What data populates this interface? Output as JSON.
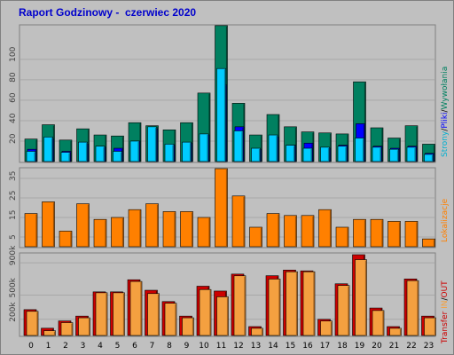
{
  "title": "Raport Godzinowy -  czerwiec 2020",
  "colors": {
    "background": "#c0c0c0",
    "panel": "#c0c0c0",
    "strony": "#00ccff",
    "pliki": "#0000ff",
    "wywolania": "#008060",
    "lokalizacje": "#ff8000",
    "transfer_in": "#f4a040",
    "transfer_out": "#cc0000"
  },
  "legend": {
    "panel1": {
      "strony": "Strony",
      "pliki": "Pliki",
      "wywolania": "Wywołania",
      "sep": "/"
    },
    "panel2": {
      "lokalizacje": "Lokalizacje"
    },
    "panel3": {
      "transfer": "Transfer",
      "in": "IN",
      "out": "OUT",
      "sep": "/"
    }
  },
  "chart_data": [
    {
      "type": "bar",
      "title": "Raport Godzinowy -  czerwiec 2020",
      "categories": [
        "0",
        "1",
        "2",
        "3",
        "4",
        "5",
        "6",
        "7",
        "8",
        "9",
        "10",
        "11",
        "12",
        "13",
        "14",
        "15",
        "16",
        "17",
        "18",
        "19",
        "20",
        "21",
        "22",
        "23"
      ],
      "yticks": [
        "20",
        "40",
        "60",
        "80",
        "100"
      ],
      "ylim": [
        0,
        132
      ],
      "series": [
        {
          "name": "Wywołania",
          "values": [
            22,
            36,
            21,
            32,
            26,
            25,
            38,
            35,
            31,
            38,
            67,
            133,
            57,
            26,
            46,
            34,
            29,
            28,
            27,
            78,
            33,
            23,
            35,
            17
          ]
        },
        {
          "name": "Pliki",
          "values": [
            12,
            22,
            10,
            17,
            14,
            13,
            20,
            32,
            16,
            18,
            26,
            75,
            34,
            12,
            24,
            16,
            18,
            13,
            16,
            37,
            15,
            13,
            15,
            8
          ]
        },
        {
          "name": "Strony",
          "values": [
            10,
            24,
            9,
            19,
            15,
            10,
            20,
            34,
            17,
            19,
            27,
            91,
            30,
            13,
            26,
            16,
            13,
            14,
            15,
            23,
            14,
            12,
            14,
            7
          ]
        }
      ]
    },
    {
      "type": "bar",
      "categories": [
        "0",
        "1",
        "2",
        "3",
        "4",
        "5",
        "6",
        "7",
        "8",
        "9",
        "10",
        "11",
        "12",
        "13",
        "14",
        "15",
        "16",
        "17",
        "18",
        "19",
        "20",
        "21",
        "22",
        "23"
      ],
      "yticks": [
        "5",
        "15",
        "25",
        "35"
      ],
      "ylim": [
        0,
        40
      ],
      "series": [
        {
          "name": "Lokalizacje",
          "values": [
            17,
            23,
            8,
            22,
            14,
            15,
            19,
            22,
            18,
            18,
            15,
            40,
            26,
            10,
            17,
            16,
            16,
            19,
            10,
            14,
            14,
            13,
            13,
            4
          ]
        }
      ]
    },
    {
      "type": "bar",
      "categories": [
        "0",
        "1",
        "2",
        "3",
        "4",
        "5",
        "6",
        "7",
        "8",
        "9",
        "10",
        "11",
        "12",
        "13",
        "14",
        "15",
        "16",
        "17",
        "18",
        "19",
        "20",
        "21",
        "22",
        "23"
      ],
      "yticks": [
        "200k",
        "500k",
        "900k"
      ],
      "ylim": [
        0,
        1000
      ],
      "series": [
        {
          "name": "OUT",
          "values": [
            320,
            90,
            180,
            240,
            540,
            540,
            690,
            560,
            420,
            240,
            610,
            550,
            760,
            110,
            740,
            810,
            800,
            200,
            640,
            1000,
            340,
            110,
            700,
            240
          ]
        },
        {
          "name": "IN",
          "values": [
            310,
            70,
            170,
            230,
            540,
            540,
            680,
            530,
            410,
            230,
            580,
            490,
            750,
            100,
            710,
            800,
            800,
            190,
            630,
            950,
            320,
            100,
            690,
            230
          ]
        }
      ]
    }
  ]
}
